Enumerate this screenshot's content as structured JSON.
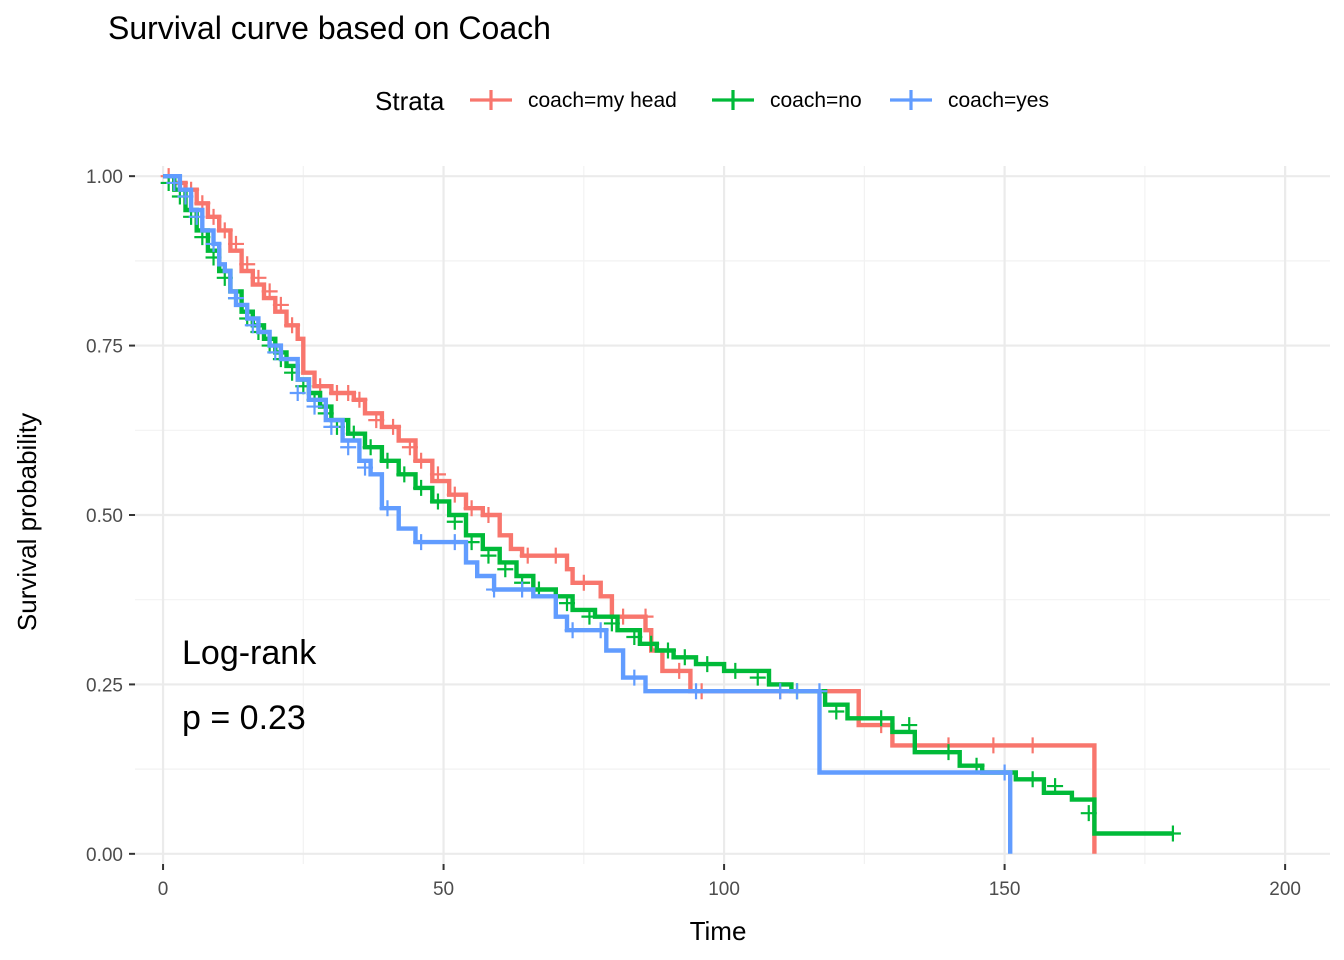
{
  "chart_data": {
    "type": "line",
    "title": "Survival curve based on Coach",
    "xlabel": "Time",
    "ylabel": "Survival probability",
    "xlim": [
      -5,
      208
    ],
    "ylim": [
      -0.015,
      1.015
    ],
    "x_ticks": [
      0,
      50,
      100,
      150,
      200
    ],
    "x_tick_labels": [
      "0",
      "50",
      "100",
      "150",
      "200"
    ],
    "y_ticks": [
      0,
      0.25,
      0.5,
      0.75,
      1.0
    ],
    "y_tick_labels": [
      "0.00",
      "0.25",
      "0.50",
      "0.75",
      "1.00"
    ],
    "grid": true,
    "legend": {
      "title": "Strata",
      "position": "top"
    },
    "annotations": [
      "Log-rank",
      "p = 0.23"
    ],
    "series": [
      {
        "name": "coach=my head",
        "color": "#F8766D",
        "points": [
          [
            0,
            1.0
          ],
          [
            2,
            0.99
          ],
          [
            4,
            0.98
          ],
          [
            6,
            0.96
          ],
          [
            8,
            0.94
          ],
          [
            10,
            0.92
          ],
          [
            12,
            0.89
          ],
          [
            14,
            0.86
          ],
          [
            16,
            0.84
          ],
          [
            18,
            0.82
          ],
          [
            20,
            0.8
          ],
          [
            22,
            0.78
          ],
          [
            24,
            0.76
          ],
          [
            25,
            0.71
          ],
          [
            27,
            0.69
          ],
          [
            30,
            0.68
          ],
          [
            34,
            0.67
          ],
          [
            36,
            0.65
          ],
          [
            39,
            0.63
          ],
          [
            42,
            0.61
          ],
          [
            45,
            0.58
          ],
          [
            48,
            0.55
          ],
          [
            51,
            0.53
          ],
          [
            54,
            0.51
          ],
          [
            57,
            0.5
          ],
          [
            60,
            0.47
          ],
          [
            62,
            0.45
          ],
          [
            64,
            0.44
          ],
          [
            72,
            0.42
          ],
          [
            73,
            0.4
          ],
          [
            78,
            0.38
          ],
          [
            80,
            0.35
          ],
          [
            86,
            0.33
          ],
          [
            87,
            0.3
          ],
          [
            89,
            0.27
          ],
          [
            94,
            0.24
          ],
          [
            124,
            0.19
          ],
          [
            130,
            0.16
          ],
          [
            166,
            0.0
          ]
        ],
        "censor": [
          [
            1,
            1.0
          ],
          [
            3,
            0.99
          ],
          [
            5,
            0.98
          ],
          [
            7,
            0.96
          ],
          [
            9,
            0.94
          ],
          [
            11,
            0.92
          ],
          [
            13,
            0.9
          ],
          [
            15,
            0.87
          ],
          [
            17,
            0.85
          ],
          [
            19,
            0.83
          ],
          [
            21,
            0.81
          ],
          [
            23,
            0.78
          ],
          [
            28,
            0.69
          ],
          [
            31,
            0.68
          ],
          [
            33,
            0.68
          ],
          [
            35,
            0.67
          ],
          [
            38,
            0.64
          ],
          [
            41,
            0.63
          ],
          [
            44,
            0.6
          ],
          [
            46,
            0.58
          ],
          [
            49,
            0.56
          ],
          [
            52,
            0.53
          ],
          [
            55,
            0.51
          ],
          [
            58,
            0.5
          ],
          [
            65,
            0.44
          ],
          [
            70,
            0.44
          ],
          [
            75,
            0.4
          ],
          [
            82,
            0.35
          ],
          [
            86,
            0.35
          ],
          [
            92,
            0.27
          ],
          [
            96,
            0.24
          ],
          [
            110,
            0.24
          ],
          [
            128,
            0.19
          ],
          [
            140,
            0.16
          ],
          [
            148,
            0.16
          ],
          [
            155,
            0.16
          ]
        ]
      },
      {
        "name": "coach=no",
        "color": "#00BA38",
        "points": [
          [
            0,
            1.0
          ],
          [
            2,
            0.98
          ],
          [
            4,
            0.95
          ],
          [
            6,
            0.92
          ],
          [
            8,
            0.89
          ],
          [
            10,
            0.86
          ],
          [
            12,
            0.83
          ],
          [
            14,
            0.8
          ],
          [
            16,
            0.78
          ],
          [
            18,
            0.76
          ],
          [
            20,
            0.74
          ],
          [
            22,
            0.72
          ],
          [
            24,
            0.7
          ],
          [
            26,
            0.68
          ],
          [
            28,
            0.66
          ],
          [
            30,
            0.64
          ],
          [
            33,
            0.62
          ],
          [
            36,
            0.6
          ],
          [
            39,
            0.58
          ],
          [
            42,
            0.56
          ],
          [
            45,
            0.54
          ],
          [
            48,
            0.52
          ],
          [
            51,
            0.5
          ],
          [
            54,
            0.47
          ],
          [
            57,
            0.45
          ],
          [
            60,
            0.43
          ],
          [
            63,
            0.41
          ],
          [
            66,
            0.39
          ],
          [
            70,
            0.38
          ],
          [
            73,
            0.36
          ],
          [
            77,
            0.35
          ],
          [
            81,
            0.33
          ],
          [
            85,
            0.31
          ],
          [
            88,
            0.3
          ],
          [
            91,
            0.29
          ],
          [
            95,
            0.28
          ],
          [
            100,
            0.27
          ],
          [
            108,
            0.25
          ],
          [
            112,
            0.24
          ],
          [
            118,
            0.22
          ],
          [
            122,
            0.2
          ],
          [
            130,
            0.18
          ],
          [
            134,
            0.15
          ],
          [
            142,
            0.13
          ],
          [
            146,
            0.12
          ],
          [
            152,
            0.11
          ],
          [
            157,
            0.09
          ],
          [
            162,
            0.08
          ],
          [
            166,
            0.03
          ],
          [
            180,
            0.03
          ]
        ],
        "censor": [
          [
            1,
            0.99
          ],
          [
            3,
            0.97
          ],
          [
            5,
            0.94
          ],
          [
            7,
            0.91
          ],
          [
            9,
            0.88
          ],
          [
            11,
            0.85
          ],
          [
            13,
            0.82
          ],
          [
            15,
            0.79
          ],
          [
            17,
            0.77
          ],
          [
            19,
            0.75
          ],
          [
            21,
            0.73
          ],
          [
            23,
            0.71
          ],
          [
            25,
            0.69
          ],
          [
            27,
            0.67
          ],
          [
            29,
            0.65
          ],
          [
            31,
            0.63
          ],
          [
            34,
            0.62
          ],
          [
            37,
            0.6
          ],
          [
            40,
            0.58
          ],
          [
            43,
            0.56
          ],
          [
            46,
            0.54
          ],
          [
            49,
            0.52
          ],
          [
            52,
            0.49
          ],
          [
            55,
            0.46
          ],
          [
            58,
            0.44
          ],
          [
            61,
            0.42
          ],
          [
            64,
            0.4
          ],
          [
            67,
            0.39
          ],
          [
            72,
            0.37
          ],
          [
            76,
            0.35
          ],
          [
            80,
            0.34
          ],
          [
            84,
            0.32
          ],
          [
            87,
            0.31
          ],
          [
            90,
            0.3
          ],
          [
            93,
            0.29
          ],
          [
            97,
            0.28
          ],
          [
            102,
            0.27
          ],
          [
            106,
            0.26
          ],
          [
            113,
            0.24
          ],
          [
            120,
            0.21
          ],
          [
            128,
            0.2
          ],
          [
            133,
            0.19
          ],
          [
            140,
            0.15
          ],
          [
            145,
            0.13
          ],
          [
            155,
            0.11
          ],
          [
            159,
            0.1
          ],
          [
            165,
            0.06
          ],
          [
            180,
            0.03
          ]
        ]
      },
      {
        "name": "coach=yes",
        "color": "#619CFF",
        "points": [
          [
            0,
            1.0
          ],
          [
            3,
            0.98
          ],
          [
            5,
            0.95
          ],
          [
            7,
            0.92
          ],
          [
            9,
            0.9
          ],
          [
            10,
            0.87
          ],
          [
            11,
            0.86
          ],
          [
            12,
            0.83
          ],
          [
            13,
            0.81
          ],
          [
            15,
            0.79
          ],
          [
            17,
            0.77
          ],
          [
            19,
            0.75
          ],
          [
            21,
            0.73
          ],
          [
            24,
            0.7
          ],
          [
            26,
            0.67
          ],
          [
            29,
            0.64
          ],
          [
            32,
            0.61
          ],
          [
            35,
            0.58
          ],
          [
            37,
            0.56
          ],
          [
            39,
            0.51
          ],
          [
            42,
            0.48
          ],
          [
            45,
            0.46
          ],
          [
            54,
            0.43
          ],
          [
            56,
            0.41
          ],
          [
            59,
            0.39
          ],
          [
            66,
            0.38
          ],
          [
            70,
            0.35
          ],
          [
            72,
            0.33
          ],
          [
            79,
            0.3
          ],
          [
            82,
            0.26
          ],
          [
            86,
            0.24
          ],
          [
            117,
            0.12
          ],
          [
            151,
            0.0
          ]
        ],
        "censor": [
          [
            2,
            0.99
          ],
          [
            4,
            0.97
          ],
          [
            6,
            0.94
          ],
          [
            9,
            0.9
          ],
          [
            13,
            0.82
          ],
          [
            16,
            0.78
          ],
          [
            20,
            0.74
          ],
          [
            24,
            0.68
          ],
          [
            27,
            0.66
          ],
          [
            30,
            0.63
          ],
          [
            33,
            0.6
          ],
          [
            36,
            0.57
          ],
          [
            40,
            0.51
          ],
          [
            46,
            0.46
          ],
          [
            52,
            0.46
          ],
          [
            59,
            0.39
          ],
          [
            64,
            0.39
          ],
          [
            73,
            0.33
          ],
          [
            78,
            0.33
          ],
          [
            84,
            0.26
          ],
          [
            95,
            0.24
          ],
          [
            110,
            0.24
          ],
          [
            113,
            0.24
          ],
          [
            117,
            0.24
          ],
          [
            150,
            0.12
          ]
        ]
      }
    ]
  }
}
